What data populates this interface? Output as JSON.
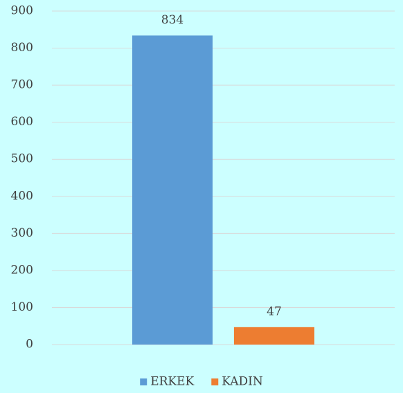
{
  "chart_data": {
    "type": "bar",
    "categories": [
      null
    ],
    "series": [
      {
        "name": "ERKEK",
        "color": "#5b9bd5",
        "values": [
          834
        ]
      },
      {
        "name": "KADIN",
        "color": "#ed7d31",
        "values": [
          47
        ]
      }
    ],
    "ylim": [
      0,
      900
    ],
    "yticks": [
      0,
      100,
      200,
      300,
      400,
      500,
      600,
      700,
      800,
      900
    ],
    "grid": true,
    "legend": "bottom",
    "data_labels": true
  }
}
